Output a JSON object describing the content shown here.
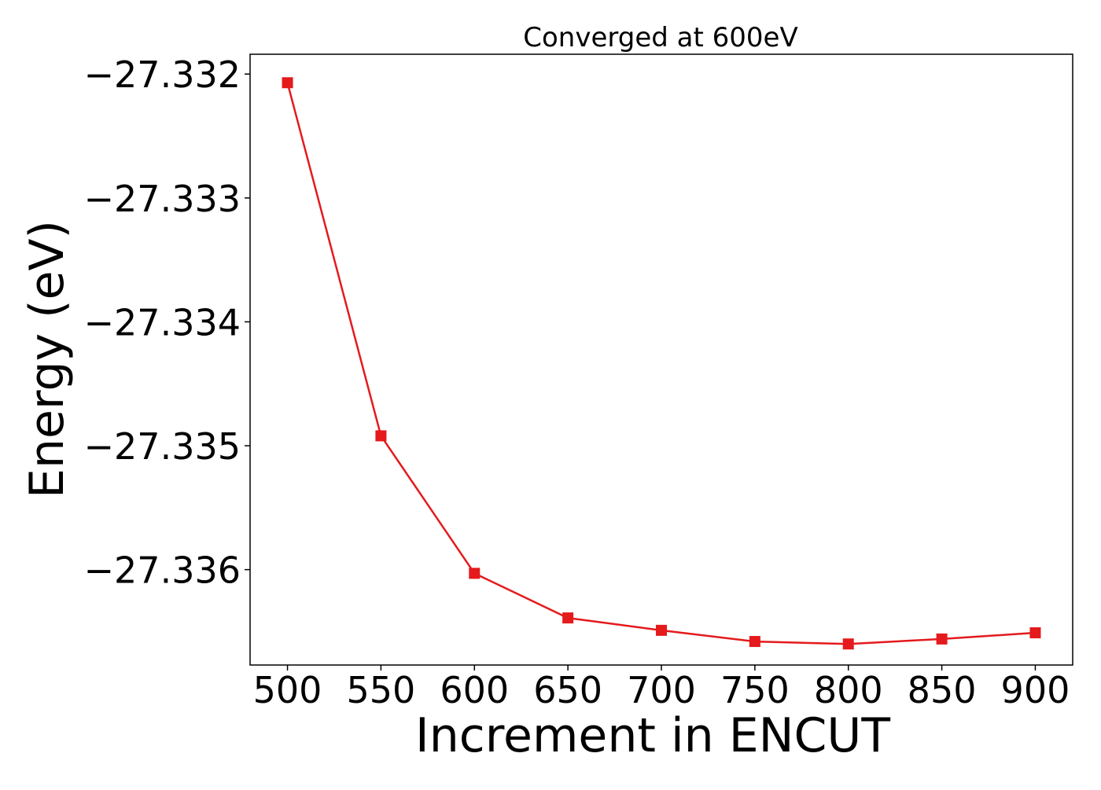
{
  "chart_data": {
    "type": "line",
    "title": "Converged at 600eV",
    "xlabel": "Increment in ENCUT",
    "ylabel": "Energy (eV)",
    "x": [
      500,
      550,
      600,
      650,
      700,
      750,
      800,
      850,
      900
    ],
    "series": [
      {
        "values": [
          -27.33207,
          -27.33492,
          -27.33603,
          -27.33639,
          -27.33649,
          -27.33658,
          -27.3366,
          -27.33656,
          -27.33651
        ],
        "color": "#e41a1c",
        "marker": "square"
      }
    ],
    "xlim": [
      480,
      920
    ],
    "ylim": [
      -27.33677,
      -27.33184
    ],
    "xticks": [
      500,
      550,
      600,
      650,
      700,
      750,
      800,
      850,
      900
    ],
    "xtick_labels": [
      "500",
      "550",
      "600",
      "650",
      "700",
      "750",
      "800",
      "850",
      "900"
    ],
    "yticks": [
      -27.332,
      -27.333,
      -27.334,
      -27.335,
      -27.336
    ],
    "ytick_labels": [
      "−27.332",
      "−27.333",
      "−27.334",
      "−27.335",
      "−27.336"
    ],
    "grid": false,
    "legend": "none"
  }
}
